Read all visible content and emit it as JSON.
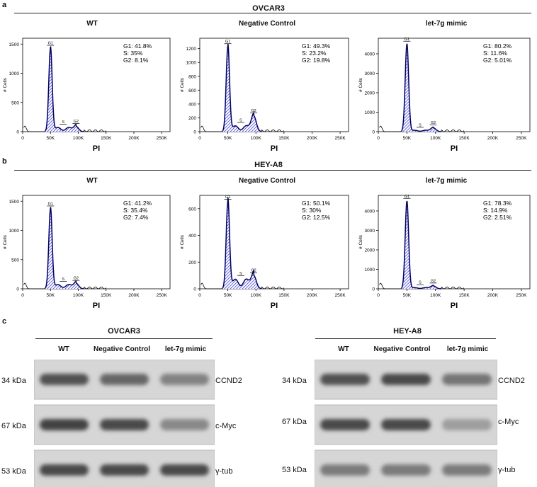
{
  "panel_a": {
    "letter": "a",
    "title": "OVCAR3",
    "plots": [
      {
        "title": "WT",
        "ylabel": "# Cells",
        "xlabel": "PI",
        "yticks": [
          "0",
          "500",
          "1000",
          "1500"
        ],
        "ymax": 1600,
        "xticks": [
          "0",
          "50K",
          "100K",
          "150K",
          "200K",
          "250K"
        ],
        "stats": [
          "G1: 41.8%",
          "S: 35%",
          "G2: 8.1%"
        ],
        "g1_peak": 1430,
        "g2_height": 90,
        "s_level": 60,
        "gates": [
          "G1",
          "S",
          "G2"
        ]
      },
      {
        "title": "Negative Control",
        "ylabel": "# Cells",
        "xlabel": "PI",
        "yticks": [
          "0",
          "200",
          "400",
          "600",
          "800",
          "1000",
          "1200"
        ],
        "ymax": 1350,
        "xticks": [
          "0",
          "50K",
          "100K",
          "150K",
          "200K",
          "250K"
        ],
        "stats": [
          "G1: 49.3%",
          "S: 23.2%",
          "G2: 19.8%"
        ],
        "g1_peak": 1230,
        "g2_height": 230,
        "s_level": 70,
        "gates": [
          "G1",
          "S",
          "G2"
        ]
      },
      {
        "title": "let-7g mimic",
        "ylabel": "# Cells",
        "xlabel": "PI",
        "yticks": [
          "0",
          "1000",
          "2000",
          "3000",
          "4000"
        ],
        "ymax": 4800,
        "xticks": [
          "0",
          "50K",
          "100K",
          "150K",
          "200K",
          "250K"
        ],
        "stats": [
          "G1: 80.2%",
          "S: 11.6%",
          "G2: 5.01%"
        ],
        "g1_peak": 4500,
        "g2_height": 200,
        "s_level": 60,
        "gates": [
          "G1",
          "S",
          "G2"
        ]
      }
    ]
  },
  "panel_b": {
    "letter": "b",
    "title": "HEY-A8",
    "plots": [
      {
        "title": "WT",
        "ylabel": "# Cells",
        "xlabel": "PI",
        "yticks": [
          "0",
          "500",
          "1000",
          "1500"
        ],
        "ymax": 1600,
        "xticks": [
          "0",
          "50K",
          "100K",
          "150K",
          "200K",
          "250K"
        ],
        "stats": [
          "G1: 41.2%",
          "S: 35.4%",
          "G2: 7.4%"
        ],
        "g1_peak": 1370,
        "g2_height": 95,
        "s_level": 60,
        "gates": [
          "G1",
          "S",
          "G2"
        ]
      },
      {
        "title": "Negative Control",
        "ylabel": "# Cells",
        "xlabel": "PI",
        "yticks": [
          "0",
          "200",
          "400",
          "600"
        ],
        "ymax": 700,
        "xticks": [
          "0",
          "50K",
          "100K",
          "150K",
          "200K",
          "250K"
        ],
        "stats": [
          "G1: 50.1%",
          "S: 30%",
          "G2: 12.5%"
        ],
        "g1_peak": 650,
        "g2_height": 100,
        "s_level": 60,
        "gates": [
          "G1",
          "S",
          "G2"
        ]
      },
      {
        "title": "let-7g mimic",
        "ylabel": "# Cells",
        "xlabel": "PI",
        "yticks": [
          "0",
          "1000",
          "2000",
          "3000",
          "4000"
        ],
        "ymax": 4800,
        "xticks": [
          "0",
          "50K",
          "100K",
          "150K",
          "200K",
          "250K"
        ],
        "stats": [
          "G1: 78.3%",
          "S: 14.9%",
          "G2: 2.51%"
        ],
        "g1_peak": 4500,
        "g2_height": 150,
        "s_level": 50,
        "gates": [
          "G1",
          "S",
          "G2"
        ]
      }
    ]
  },
  "panel_c": {
    "letter": "c",
    "blots": [
      {
        "title": "OVCAR3",
        "lanes": [
          "WT",
          "Negative Control",
          "let-7g mimic"
        ],
        "rows": [
          {
            "kda": "34 kDa",
            "protein": "CCND2",
            "intensity": [
              0.85,
              0.7,
              0.5
            ]
          },
          {
            "kda": "67 kDa",
            "protein": "c-Myc",
            "intensity": [
              0.95,
              0.9,
              0.45
            ]
          },
          {
            "kda": "53 kDa",
            "protein": "γ-tub",
            "intensity": [
              0.9,
              0.9,
              0.9
            ]
          }
        ]
      },
      {
        "title": "HEY-A8",
        "lanes": [
          "WT",
          "Negative Control",
          "let-7g mimic"
        ],
        "rows": [
          {
            "kda": "34 kDa",
            "protein": "CCND2",
            "intensity": [
              0.85,
              0.9,
              0.6
            ]
          },
          {
            "kda": "67 kDa",
            "protein": "c-Myc",
            "intensity": [
              0.9,
              0.9,
              0.3
            ]
          },
          {
            "kda": "53 kDa",
            "protein": "γ-tub",
            "intensity": [
              0.55,
              0.55,
              0.55
            ]
          }
        ]
      }
    ]
  }
}
